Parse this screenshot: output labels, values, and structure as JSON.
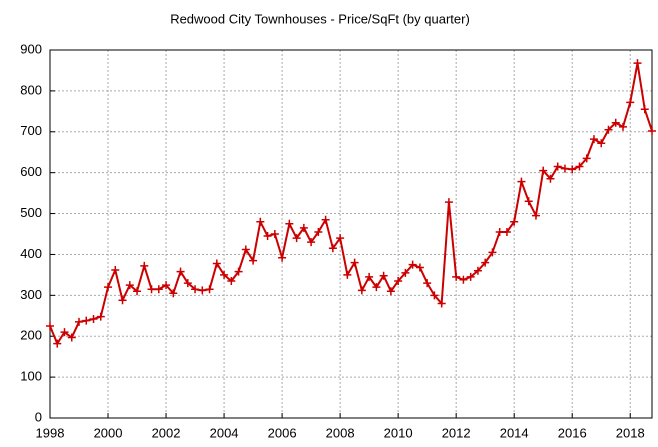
{
  "chart_data": {
    "type": "line",
    "title": "Redwood City Townhouses - Price/SqFt (by quarter)",
    "x": [
      1998,
      1998.25,
      1998.5,
      1998.75,
      1999,
      1999.25,
      1999.5,
      1999.75,
      2000,
      2000.25,
      2000.5,
      2000.75,
      2001,
      2001.25,
      2001.5,
      2001.75,
      2002,
      2002.25,
      2002.5,
      2002.75,
      2003,
      2003.25,
      2003.5,
      2003.75,
      2004,
      2004.25,
      2004.5,
      2004.75,
      2005,
      2005.25,
      2005.5,
      2005.75,
      2006,
      2006.25,
      2006.5,
      2006.75,
      2007,
      2007.25,
      2007.5,
      2007.75,
      2008,
      2008.25,
      2008.5,
      2008.75,
      2009,
      2009.25,
      2009.5,
      2009.75,
      2010,
      2010.25,
      2010.5,
      2010.75,
      2011,
      2011.25,
      2011.5,
      2011.75,
      2012,
      2012.25,
      2012.5,
      2012.75,
      2013,
      2013.25,
      2013.5,
      2013.75,
      2014,
      2014.25,
      2014.5,
      2014.75,
      2015,
      2015.25,
      2015.5,
      2015.75,
      2016,
      2016.25,
      2016.5,
      2016.75,
      2017,
      2017.25,
      2017.5,
      2017.75,
      2018,
      2018.25,
      2018.5,
      2018.75
    ],
    "series": [
      {
        "name": "Price/SqFt",
        "color": "#cc0000",
        "values": [
          225,
          182,
          210,
          197,
          235,
          238,
          242,
          248,
          320,
          362,
          288,
          325,
          310,
          372,
          315,
          315,
          325,
          305,
          358,
          330,
          315,
          312,
          315,
          378,
          350,
          335,
          358,
          412,
          385,
          480,
          445,
          450,
          392,
          475,
          440,
          465,
          430,
          455,
          485,
          415,
          440,
          350,
          380,
          312,
          345,
          320,
          348,
          310,
          335,
          355,
          375,
          368,
          330,
          300,
          280,
          528,
          345,
          338,
          345,
          360,
          380,
          405,
          455,
          455,
          480,
          578,
          530,
          495,
          605,
          585,
          615,
          610,
          608,
          615,
          635,
          682,
          672,
          705,
          722,
          712,
          772,
          868,
          755,
          702
        ]
      }
    ],
    "xlim": [
      1998,
      2018.75
    ],
    "ylim": [
      0,
      900
    ],
    "xticks": [
      1998,
      2000,
      2002,
      2004,
      2006,
      2008,
      2010,
      2012,
      2014,
      2016,
      2018
    ],
    "yticks": [
      0,
      100,
      200,
      300,
      400,
      500,
      600,
      700,
      800,
      900
    ],
    "grid": true
  }
}
